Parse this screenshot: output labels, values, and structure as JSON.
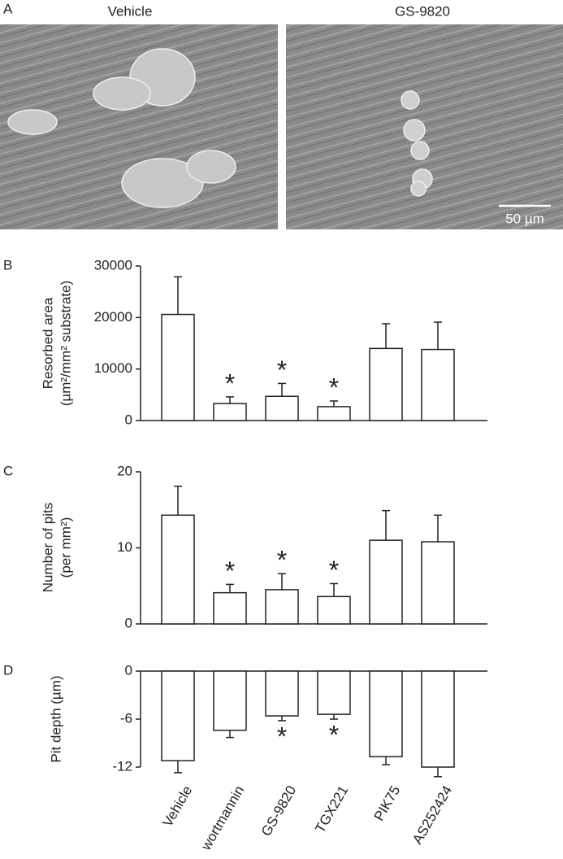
{
  "panel_a": {
    "label": "A",
    "titles": [
      "Vehicle",
      "GS-9820"
    ],
    "scale_bar": "50 µm"
  },
  "chart_data": [
    {
      "type": "bar",
      "panel_label": "B",
      "y_label": [
        "Resorbed area",
        "(µm²/mm² substrate)"
      ],
      "values": [
        20600,
        3300,
        4700,
        2700,
        14000,
        13800
      ],
      "errors": [
        7300,
        1300,
        2500,
        1100,
        4800,
        5300
      ],
      "significant": [
        false,
        true,
        true,
        true,
        false,
        false
      ],
      "marker": "*",
      "ylim": [
        0,
        30000
      ],
      "yticks": [
        0,
        10000,
        20000,
        30000
      ],
      "color": "#ffffff"
    },
    {
      "type": "bar",
      "panel_label": "C",
      "y_label": [
        "Number of pits",
        "(per mm²)"
      ],
      "values": [
        14.3,
        4.1,
        4.5,
        3.6,
        11.0,
        10.8
      ],
      "errors": [
        3.8,
        1.1,
        2.1,
        1.7,
        3.9,
        3.5
      ],
      "significant": [
        false,
        true,
        true,
        true,
        false,
        false
      ],
      "marker": "*",
      "ylim": [
        0,
        20
      ],
      "yticks": [
        0,
        10,
        20
      ],
      "color": "#ffffff"
    },
    {
      "type": "bar",
      "panel_label": "D",
      "y_label": [
        "Pit depth (µm)"
      ],
      "categories": [
        "Vehicle",
        "wortmannin",
        "GS-9820",
        "TGX221",
        "PIK75",
        "AS252424"
      ],
      "values": [
        -11.2,
        -7.4,
        -5.6,
        -5.4,
        -10.7,
        -12.0
      ],
      "errors": [
        1.5,
        0.9,
        0.6,
        0.6,
        1.0,
        1.2
      ],
      "significant": [
        false,
        false,
        true,
        true,
        false,
        false
      ],
      "marker": "*",
      "ylim": [
        -12,
        0
      ],
      "yticks": [
        -12,
        -6,
        0
      ],
      "color": "#ffffff"
    }
  ]
}
